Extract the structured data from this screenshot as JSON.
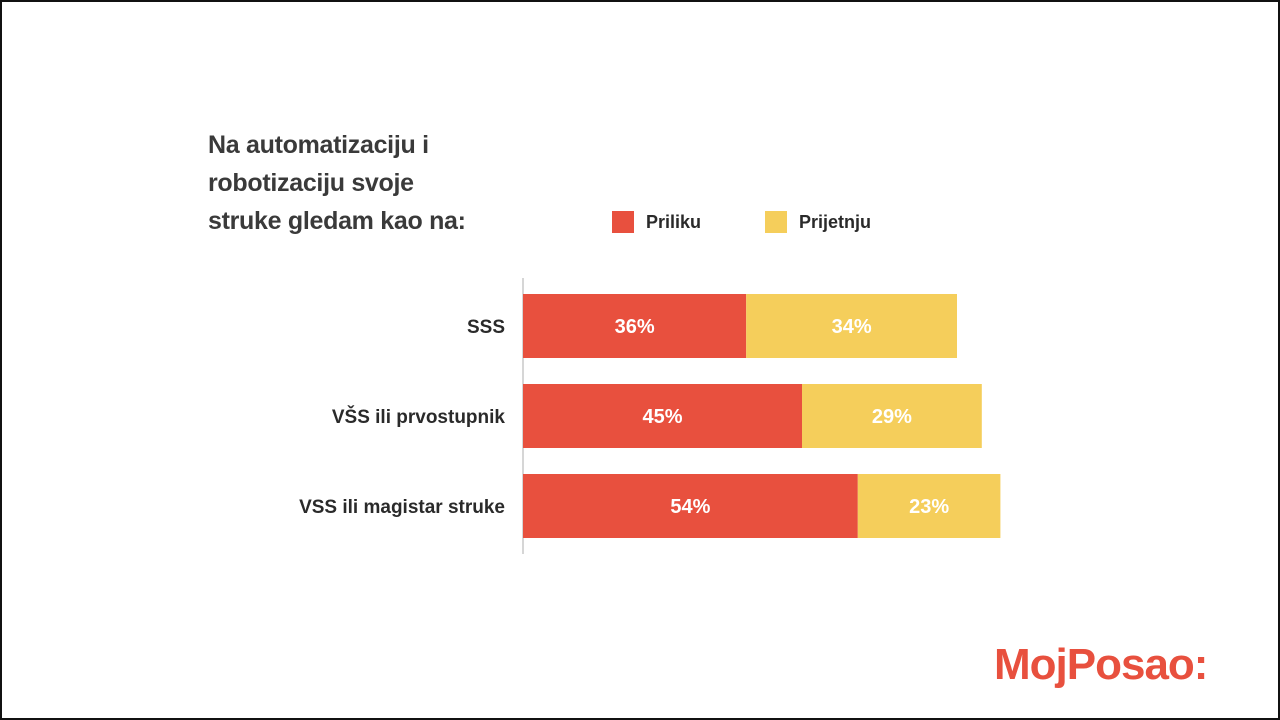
{
  "chart_data": {
    "type": "bar",
    "orientation": "horizontal",
    "stacked": true,
    "title_lines": [
      "Na automatizaciju i",
      "robotizaciju svoje",
      "struke gledam kao na:"
    ],
    "categories": [
      "SSS",
      "VŠS ili prvostupnik",
      "VSS ili magistar struke"
    ],
    "series": [
      {
        "name": "Priliku",
        "color": "#e8503e",
        "values": [
          36,
          45,
          54
        ]
      },
      {
        "name": "Prijetnju",
        "color": "#f5ce5b",
        "values": [
          34,
          29,
          23
        ]
      }
    ],
    "value_suffix": "%",
    "xlim": [
      0,
      100
    ],
    "legend_position": "top-right",
    "grid": false
  },
  "brand": {
    "logo_text": "MojPosao:"
  }
}
